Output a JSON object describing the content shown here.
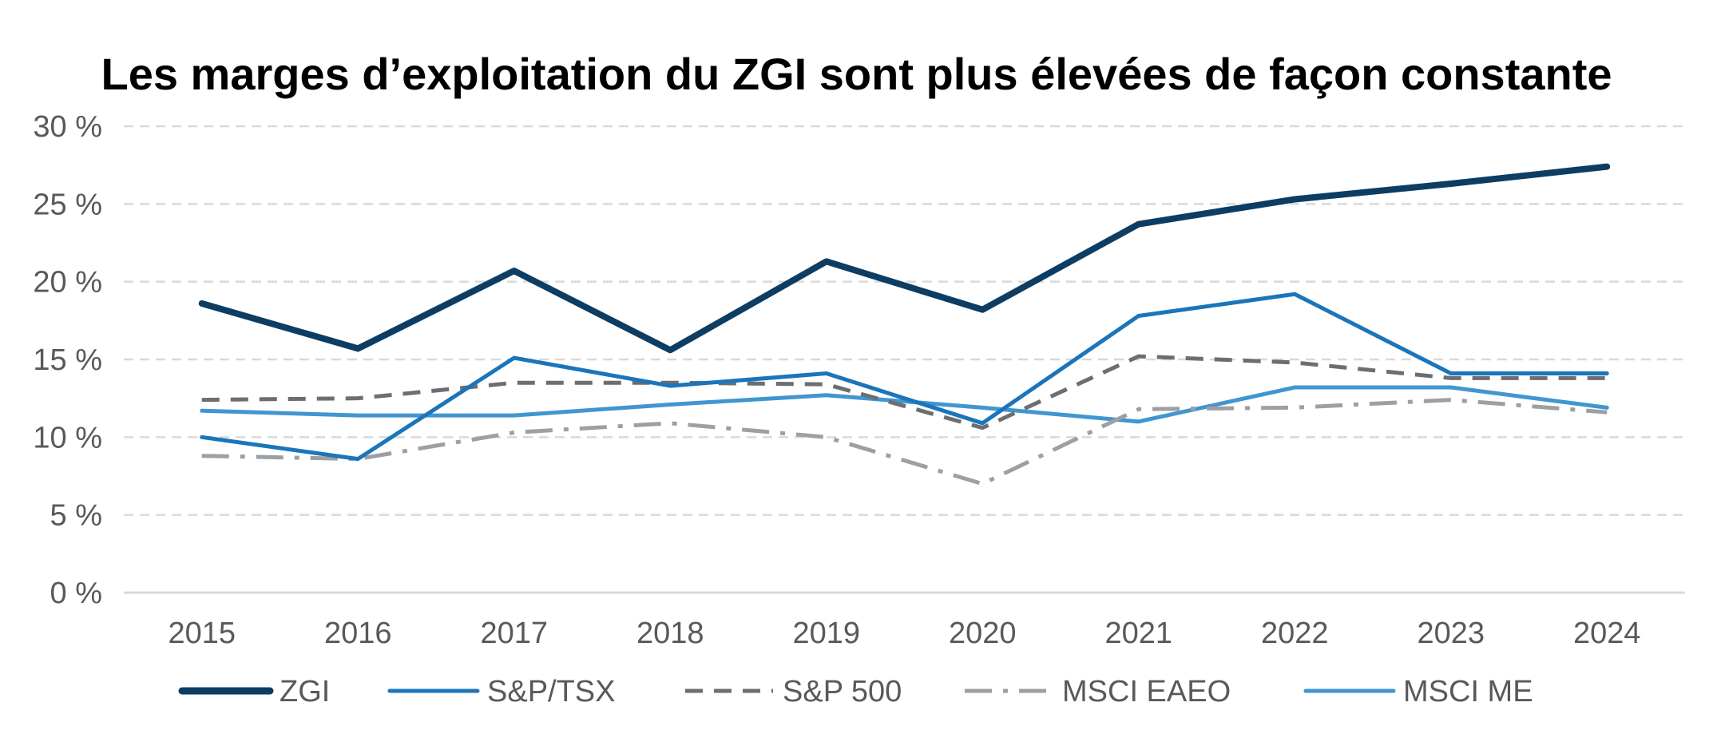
{
  "chart_data": {
    "type": "line",
    "title": "Les marges d’exploitation du ZGI sont plus élevées de façon constante",
    "xlabel": "",
    "ylabel": "",
    "x": [
      "2015",
      "2016",
      "2017",
      "2018",
      "2019",
      "2020",
      "2021",
      "2022",
      "2023",
      "2024"
    ],
    "ylim": [
      0,
      30
    ],
    "yticks": [
      0,
      5,
      10,
      15,
      20,
      25,
      30
    ],
    "ytick_labels": [
      "0 %",
      "5 %",
      "10 %",
      "15 %",
      "20 %",
      "25 %",
      "30 %"
    ],
    "grid": true,
    "legend_position": "bottom",
    "series": [
      {
        "name": "ZGI",
        "color": "#0d3d63",
        "dash": "solid",
        "width": 8,
        "values": [
          18.6,
          15.7,
          20.7,
          15.6,
          21.3,
          18.2,
          23.7,
          25.3,
          26.3,
          27.4
        ]
      },
      {
        "name": "S&P/TSX",
        "color": "#1a75bb",
        "dash": "solid",
        "width": 5,
        "values": [
          10.0,
          8.6,
          15.1,
          13.3,
          14.1,
          10.9,
          17.8,
          19.2,
          14.1,
          14.1
        ]
      },
      {
        "name": "S&P 500",
        "color": "#6d6e71",
        "dash": "dash",
        "width": 5,
        "values": [
          12.4,
          12.5,
          13.5,
          13.5,
          13.4,
          10.6,
          15.2,
          14.8,
          13.8,
          13.8
        ]
      },
      {
        "name": "MSCI EAEO",
        "color": "#9d9fa2",
        "dash": "dashdot",
        "width": 5,
        "values": [
          8.8,
          8.6,
          10.3,
          10.9,
          10.0,
          7.0,
          11.8,
          11.9,
          12.4,
          11.6
        ]
      },
      {
        "name": "MSCI ME",
        "color": "#4096d0",
        "dash": "solid",
        "width": 5,
        "values": [
          11.7,
          11.4,
          11.4,
          12.1,
          12.7,
          11.9,
          11.0,
          13.2,
          13.2,
          11.9
        ]
      }
    ]
  }
}
